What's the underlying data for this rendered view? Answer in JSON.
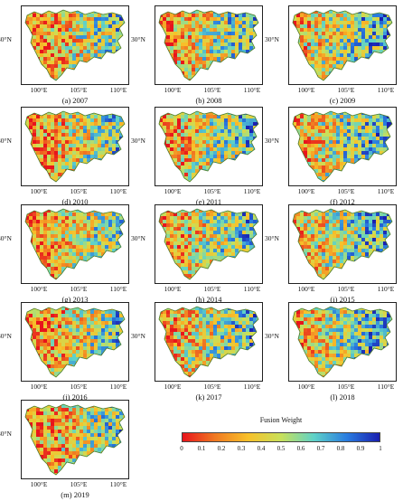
{
  "lat_label": "30°N",
  "lon_labels": [
    "100°E",
    "105°E",
    "110°E"
  ],
  "panels": [
    {
      "caption": "(a) 2007"
    },
    {
      "caption": "(b) 2008"
    },
    {
      "caption": "(c) 2009"
    },
    {
      "caption": "(d) 2010"
    },
    {
      "caption": "(e) 2011"
    },
    {
      "caption": "(f) 2012"
    },
    {
      "caption": "(g) 2013"
    },
    {
      "caption": "(h) 2014"
    },
    {
      "caption": "(i) 2015"
    },
    {
      "caption": "(j) 2016"
    },
    {
      "caption": "(k) 2017"
    },
    {
      "caption": "(l) 2018"
    },
    {
      "caption": "(m) 2019"
    }
  ],
  "colorbar": {
    "title": "Fusion Weight",
    "ticks": [
      "0",
      "0.1",
      "0.2",
      "0.3",
      "0.4",
      "0.5",
      "0.6",
      "0.7",
      "0.8",
      "0.9",
      "1"
    ],
    "colors": [
      "#e8141c",
      "#f07a22",
      "#f8c12a",
      "#c8e05a",
      "#5fd2c8",
      "#2a7de0",
      "#1a1fb0"
    ]
  }
}
